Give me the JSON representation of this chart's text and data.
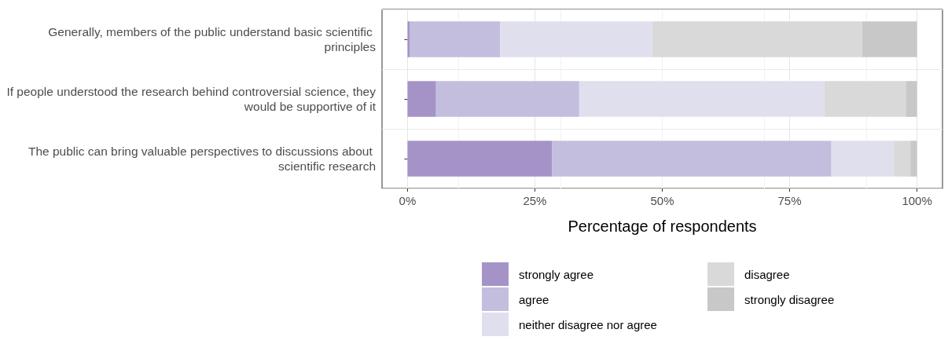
{
  "chart_data": {
    "type": "bar",
    "orientation": "horizontal",
    "stacked": true,
    "xlabel": "Percentage of respondents",
    "categories": [
      "Generally, members of the public understand basic scientific principles",
      "If people understood the research behind controversial science, they would be supportive of it",
      "The public can bring valuable perspectives to discussions about scientific research"
    ],
    "series": [
      {
        "name": "strongly agree",
        "color": "#a593c8",
        "values": [
          0.5,
          5.6,
          28.4
        ]
      },
      {
        "name": "agree",
        "color": "#c3bedd",
        "values": [
          17.7,
          28.1,
          54.8
        ]
      },
      {
        "name": "neither disagree nor agree",
        "color": "#e0dfee",
        "values": [
          29.8,
          48.1,
          12.2
        ]
      },
      {
        "name": "disagree",
        "color": "#d9d9d9",
        "values": [
          41.2,
          16.0,
          3.3
        ]
      },
      {
        "name": "strongly disagree",
        "color": "#c8c8c8",
        "values": [
          10.8,
          2.2,
          1.3
        ]
      }
    ],
    "xlim": [
      -5,
      105
    ],
    "xticks": [
      {
        "value": 0,
        "label": "0%"
      },
      {
        "value": 25,
        "label": "25%"
      },
      {
        "value": 50,
        "label": "50%"
      },
      {
        "value": 75,
        "label": "75%"
      },
      {
        "value": 100,
        "label": "100%"
      }
    ],
    "grid": true,
    "legend": "bottom"
  }
}
